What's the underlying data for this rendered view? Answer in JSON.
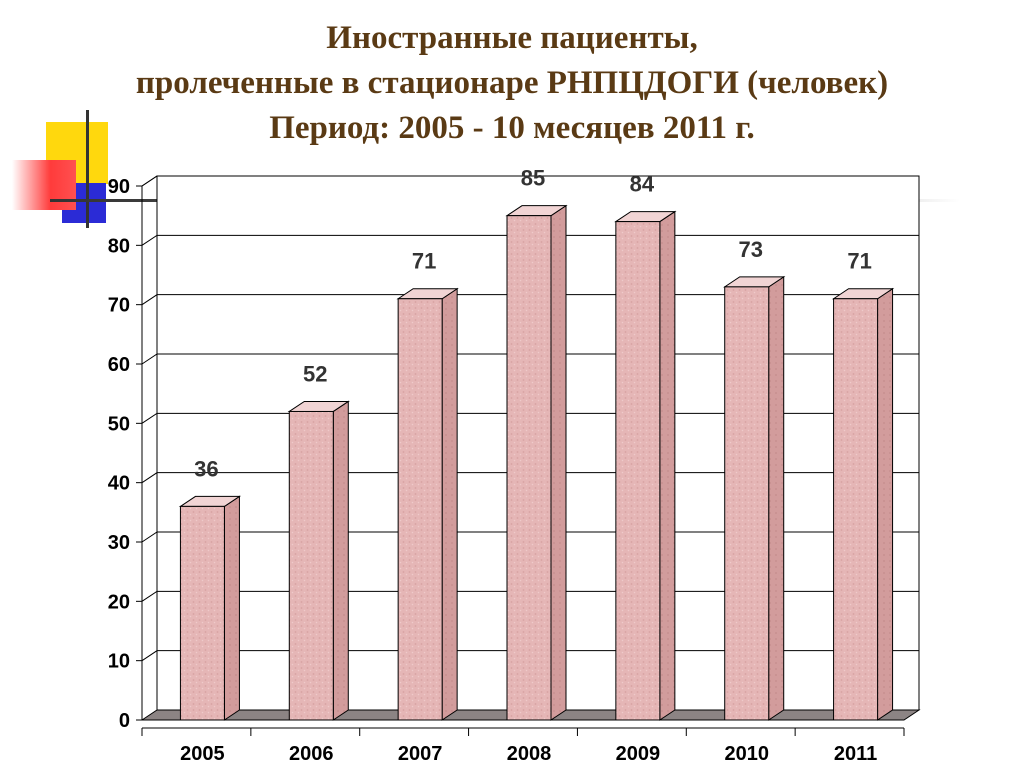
{
  "title": {
    "line1": "Иностранные пациенты,",
    "line2": "пролеченные в стационаре  РНПЦДОГИ (человек)",
    "line3": "Период: 2005 - 10 месяцев 2011 г."
  },
  "colors": {
    "title": "#5a3a14",
    "bar_front": "#e5b6b6",
    "bar_side": "#d29c9c",
    "bar_top": "#f1d4d4",
    "floor": "#8c8484",
    "deco_yellow": "#ffd600",
    "deco_blue": "#2b2bd6",
    "deco_red": "#ff3b3b"
  },
  "chart_data": {
    "type": "bar",
    "categories": [
      "2005",
      "2006",
      "2007",
      "2008",
      "2009",
      "2010",
      "2011"
    ],
    "values": [
      36,
      52,
      71,
      85,
      84,
      73,
      71
    ],
    "ylim": [
      0,
      90
    ],
    "yticks": [
      "0",
      "10",
      "20",
      "30",
      "40",
      "50",
      "60",
      "70",
      "80",
      "90"
    ],
    "xlabel": "",
    "ylabel": "",
    "grid": true,
    "style": "3d"
  }
}
